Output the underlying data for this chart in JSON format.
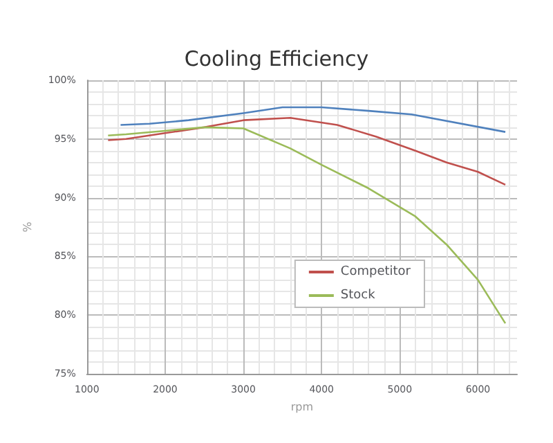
{
  "chart_data": {
    "type": "line",
    "title": "Cooling Efficiency",
    "xlabel": "rpm",
    "ylabel": "%",
    "series": [
      {
        "color": "#4f81bd",
        "x": [
          1430,
          1800,
          2300,
          3000,
          3500,
          4000,
          4600,
          5150,
          6350
        ],
        "values": [
          96.2,
          96.3,
          96.6,
          97.2,
          97.7,
          97.7,
          97.4,
          97.1,
          95.6
        ]
      },
      {
        "name": "Competitor",
        "color": "#c0504d",
        "x": [
          1270,
          1500,
          2000,
          2500,
          3000,
          3600,
          4200,
          4700,
          5200,
          5600,
          6000,
          6350
        ],
        "values": [
          94.9,
          95.0,
          95.5,
          96.0,
          96.6,
          96.8,
          96.2,
          95.2,
          94.0,
          93.0,
          92.2,
          91.1
        ]
      },
      {
        "name": "Stock",
        "color": "#9bbb59",
        "x": [
          1270,
          1500,
          2000,
          2500,
          3000,
          3600,
          4000,
          4600,
          5000,
          5200,
          5600,
          6000,
          6350
        ],
        "values": [
          95.3,
          95.4,
          95.7,
          96.0,
          95.9,
          94.2,
          92.8,
          90.8,
          89.2,
          88.4,
          86.0,
          83.0,
          79.3
        ]
      }
    ],
    "xlim": [
      1000,
      6500
    ],
    "xticks": [
      1000,
      2000,
      3000,
      4000,
      5000,
      6000
    ],
    "ylim": [
      75,
      100
    ],
    "yticks": [
      {
        "value": 75,
        "label": "75%"
      },
      {
        "value": 80,
        "label": "80%"
      },
      {
        "value": 85,
        "label": "85%"
      },
      {
        "value": 90,
        "label": "90%"
      },
      {
        "value": 95,
        "label": "95%"
      },
      {
        "value": 100,
        "label": "100%"
      }
    ],
    "grid": true,
    "legend": "bottom right",
    "marker": "none",
    "line_style": "solid"
  }
}
